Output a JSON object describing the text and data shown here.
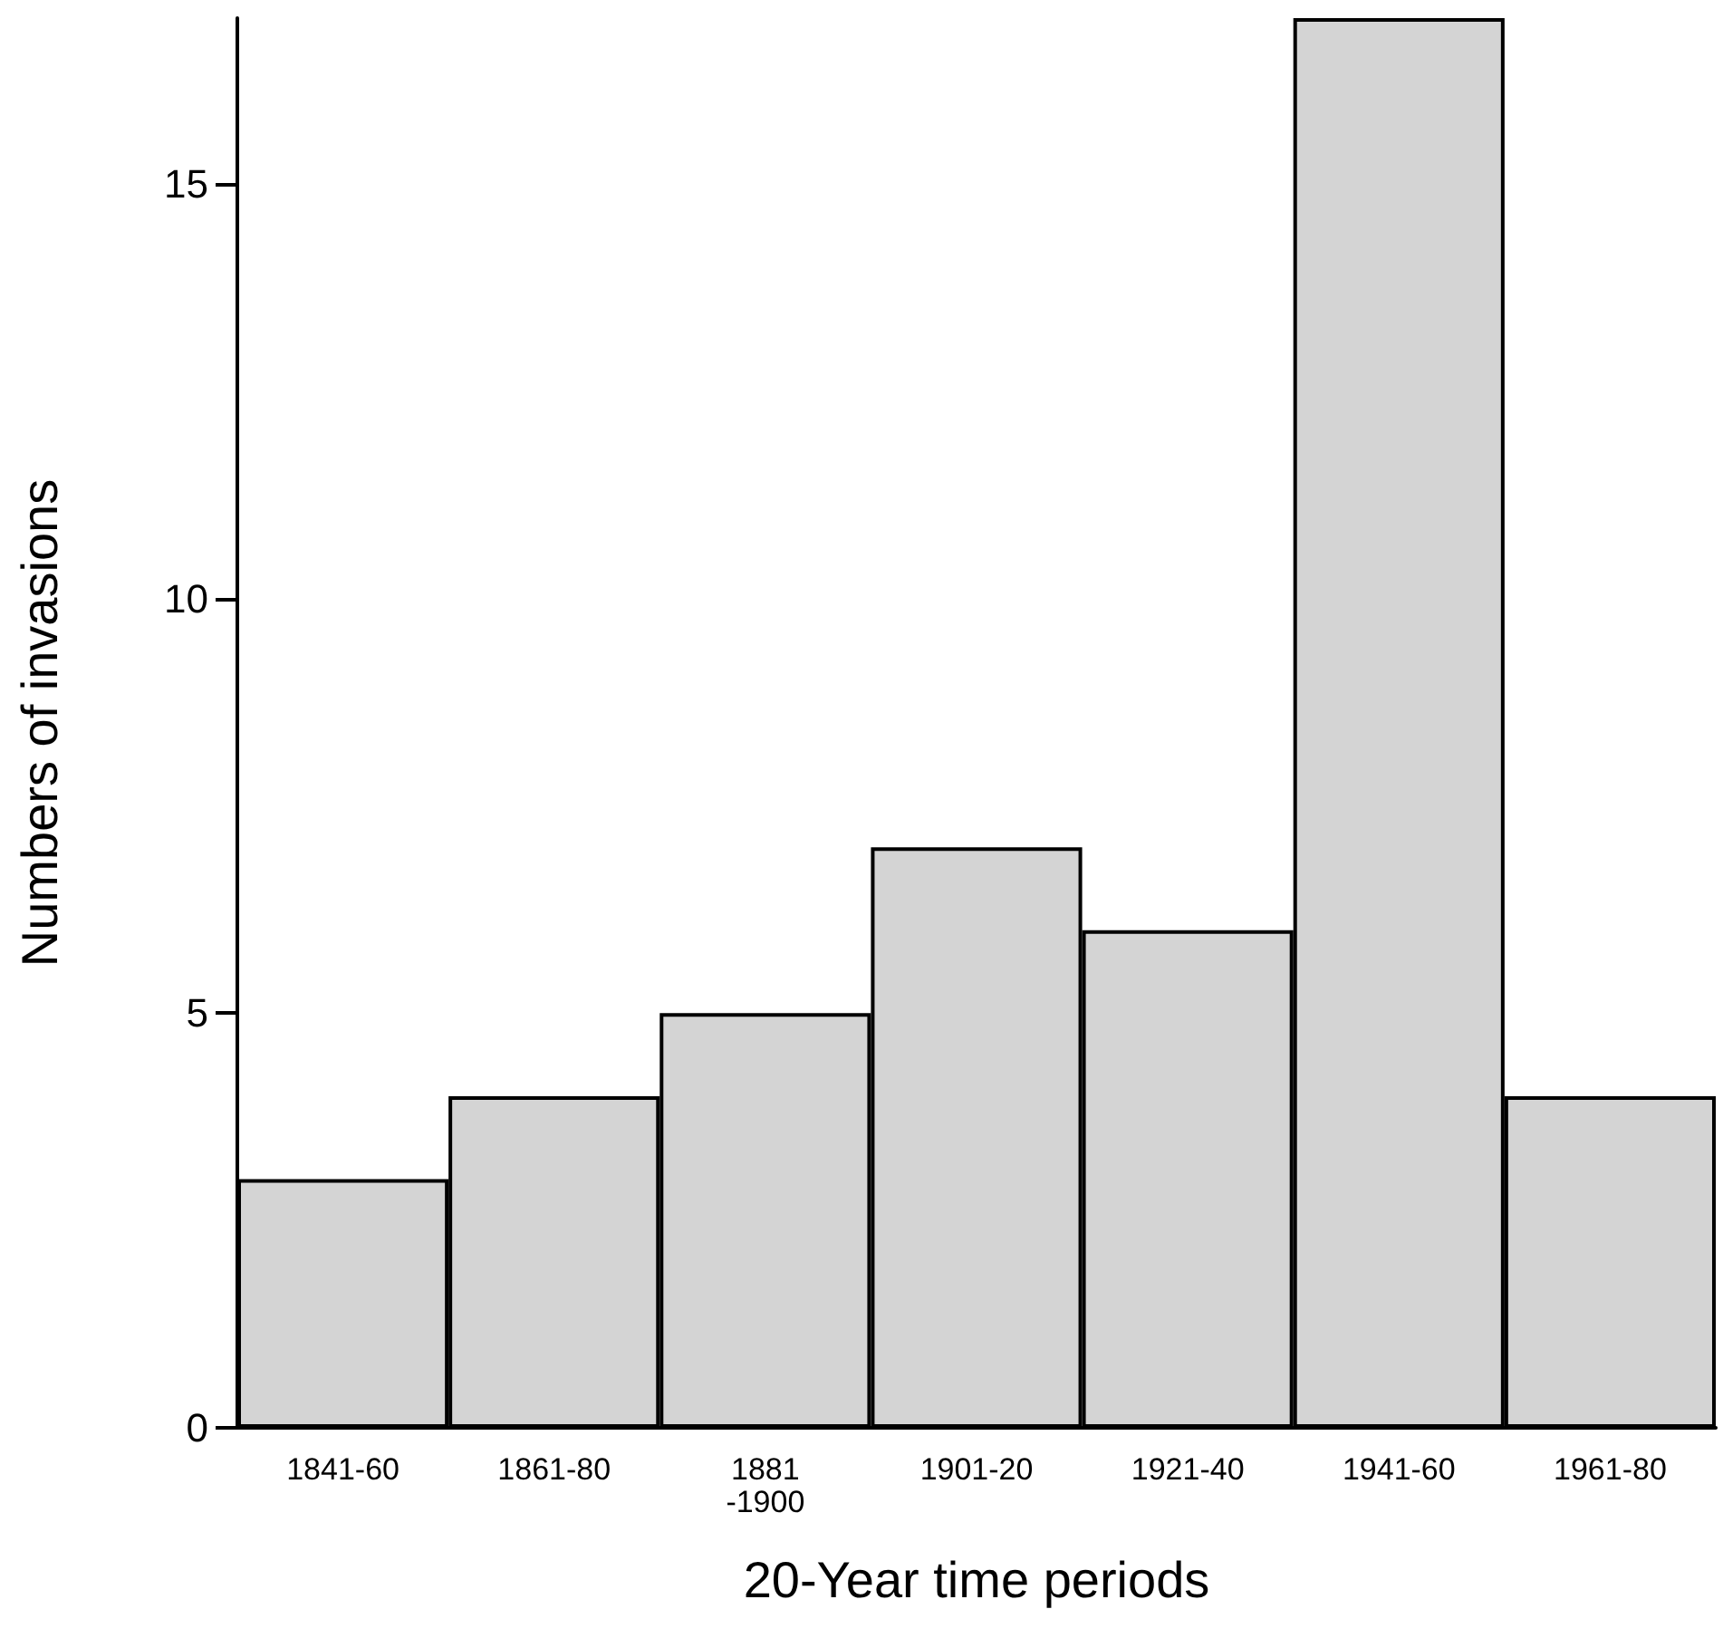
{
  "chart_data": {
    "type": "bar",
    "categories": [
      "1841-60",
      "1861-80",
      "1881\n-1900",
      "1901-20",
      "1921-40",
      "1941-60",
      "1961-80"
    ],
    "values": [
      3,
      4,
      5,
      7,
      6,
      17,
      4
    ],
    "color": "#d4d4d4",
    "xlabel": "20-Year time periods",
    "ylabel": "Numbers of invasions",
    "ylim": [
      0,
      17
    ],
    "yticks": [
      0,
      5,
      10,
      15
    ],
    "grid": false
  }
}
